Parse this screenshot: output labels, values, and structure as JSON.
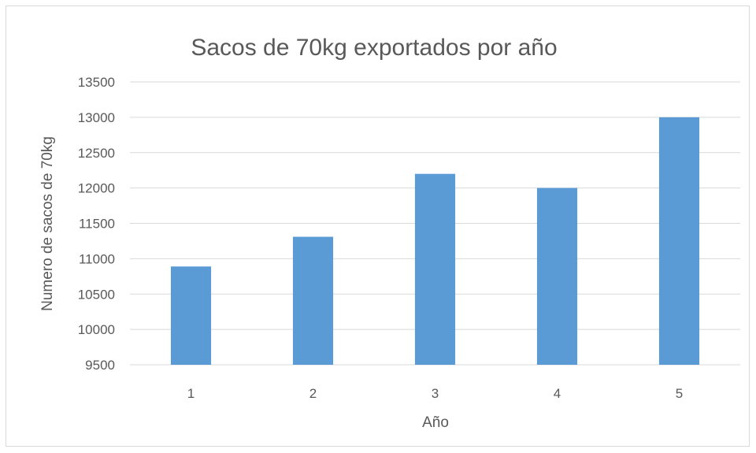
{
  "chart_data": {
    "type": "bar",
    "title": "Sacos de 70kg exportados por año",
    "xlabel": "Año",
    "ylabel": "Numero de sacos de 70kg",
    "categories": [
      "1",
      "2",
      "3",
      "4",
      "5"
    ],
    "values": [
      10890,
      11310,
      12200,
      12000,
      13000
    ],
    "ylim": [
      9500,
      13500
    ],
    "yticks": [
      9500,
      10000,
      10500,
      11000,
      11500,
      12000,
      12500,
      13000,
      13500
    ],
    "ytick_labels": [
      "9500",
      "10000",
      "10500",
      "11000",
      "11500",
      "12000",
      "12500",
      "13000",
      "13500"
    ],
    "bar_color": "#5b9bd5",
    "grid": true,
    "legend": "none"
  }
}
